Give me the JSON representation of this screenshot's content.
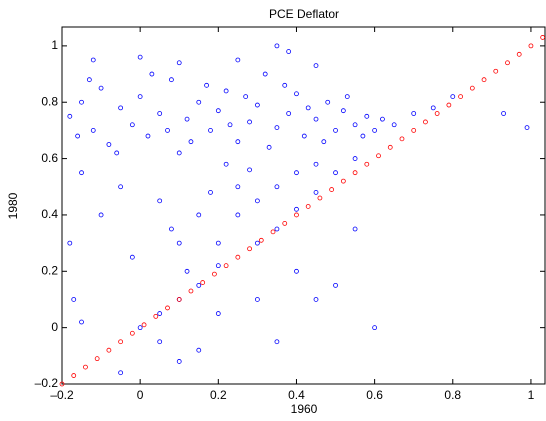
{
  "chart_data": {
    "type": "scatter",
    "title": "PCE Deflator",
    "xlabel": "1960",
    "ylabel": "1980",
    "xlim": [
      -0.2,
      1.036
    ],
    "ylim": [
      -0.2,
      1.067
    ],
    "xticks": [
      {
        "value": -0.2,
        "label": "–0.2"
      },
      0,
      0.2,
      0.4,
      0.6,
      0.8,
      1
    ],
    "yticks": [
      {
        "value": -0.2,
        "label": "–0.2"
      },
      0,
      0.2,
      0.4,
      0.6,
      0.8,
      1
    ],
    "grid": false,
    "series": [
      {
        "color": "#0000ff",
        "x": [
          -0.18,
          -0.15,
          -0.12,
          -0.1,
          -0.08,
          -0.05,
          -0.02,
          0,
          0.02,
          0.05,
          0.08,
          0.1,
          0.12,
          0.15,
          0.18,
          0.2,
          0.22,
          0.25,
          0.28,
          0.3,
          0.32,
          0.35,
          0.38,
          0.4,
          0.42,
          0.45,
          0.48,
          0.5,
          0.52,
          0.55,
          0.58,
          0.6,
          0.62,
          -0.16,
          -0.13,
          -0.06,
          0.03,
          0.07,
          0.13,
          0.17,
          0.23,
          0.27,
          0.33,
          0.37,
          0.43,
          0.47,
          0.53,
          0.57,
          0.65,
          0.7,
          0.75,
          0.8,
          0.93,
          0.99,
          -0.12,
          0,
          0.1,
          0.35,
          0.38,
          0.25,
          0.45,
          0.2,
          0.25,
          0.3,
          0.35,
          0.4,
          0.45,
          0.5,
          0.3,
          0.2,
          0.15,
          0.1,
          0.05,
          0,
          0.1,
          0.15,
          0.05,
          -0.05,
          -0.1,
          -0.15,
          0.25,
          0.35,
          0.4,
          0.45,
          0.55,
          0.28,
          0.18,
          0.08,
          -0.02,
          0.12,
          0.22,
          -0.18,
          -0.17,
          -0.15,
          0.6,
          0.45,
          0.5,
          0.35,
          0.2,
          0.05,
          -0.05,
          0.55,
          0.4,
          0.1,
          0.3,
          0.15
        ],
        "values": [
          0.75,
          0.8,
          0.7,
          0.85,
          0.65,
          0.78,
          0.72,
          0.82,
          0.68,
          0.76,
          0.88,
          0.62,
          0.74,
          0.8,
          0.7,
          0.77,
          0.84,
          0.66,
          0.73,
          0.79,
          0.9,
          0.71,
          0.76,
          0.83,
          0.68,
          0.74,
          0.8,
          0.7,
          0.77,
          0.72,
          0.75,
          0.7,
          0.74,
          0.68,
          0.88,
          0.62,
          0.9,
          0.7,
          0.66,
          0.86,
          0.72,
          0.82,
          0.64,
          0.86,
          0.78,
          0.66,
          0.82,
          0.68,
          0.72,
          0.76,
          0.78,
          0.82,
          0.76,
          0.71,
          0.95,
          0.96,
          0.94,
          1,
          0.98,
          0.95,
          0.93,
          0.3,
          0.4,
          0.45,
          0.5,
          0.55,
          0.58,
          0.55,
          0.3,
          0.22,
          0.15,
          0.1,
          0.05,
          0,
          0.3,
          0.4,
          0.45,
          0.5,
          0.4,
          0.55,
          0.5,
          0.35,
          0.42,
          0.48,
          0.6,
          0.56,
          0.48,
          0.35,
          0.25,
          0.2,
          0.58,
          0.3,
          0.1,
          0.02,
          0,
          0.1,
          0.15,
          -0.05,
          0.05,
          -0.05,
          -0.16,
          0.35,
          0.2,
          -0.12,
          0.1,
          -0.08
        ]
      },
      {
        "color": "#ff0000",
        "x": [
          -0.2,
          -0.17,
          -0.14,
          -0.11,
          -0.08,
          -0.05,
          -0.02,
          0.01,
          0.04,
          0.07,
          0.1,
          0.13,
          0.16,
          0.19,
          0.22,
          0.25,
          0.28,
          0.31,
          0.34,
          0.37,
          0.4,
          0.43,
          0.46,
          0.49,
          0.52,
          0.55,
          0.58,
          0.61,
          0.64,
          0.67,
          0.7,
          0.73,
          0.76,
          0.79,
          0.82,
          0.85,
          0.88,
          0.91,
          0.94,
          0.97,
          1,
          1.03
        ],
        "values": [
          -0.2,
          -0.17,
          -0.14,
          -0.11,
          -0.08,
          -0.05,
          -0.02,
          0.01,
          0.04,
          0.07,
          0.1,
          0.13,
          0.16,
          0.19,
          0.22,
          0.25,
          0.28,
          0.31,
          0.34,
          0.37,
          0.4,
          0.43,
          0.46,
          0.49,
          0.52,
          0.55,
          0.58,
          0.61,
          0.64,
          0.67,
          0.7,
          0.73,
          0.76,
          0.79,
          0.82,
          0.85,
          0.88,
          0.91,
          0.94,
          0.97,
          1,
          1.03
        ]
      }
    ]
  }
}
